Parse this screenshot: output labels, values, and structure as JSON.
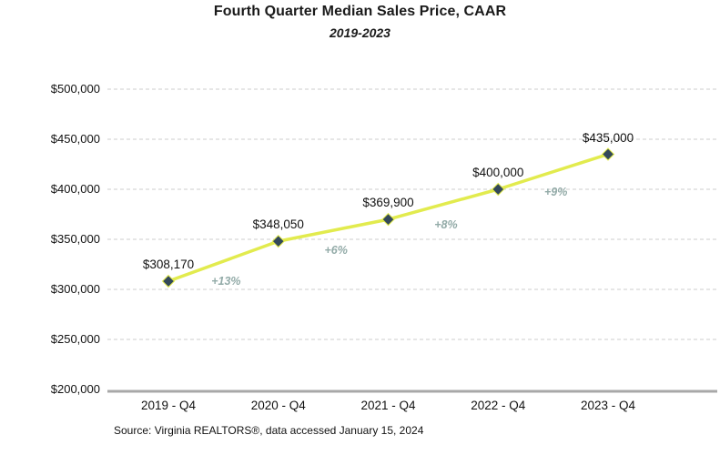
{
  "chart_data": {
    "type": "line",
    "title": "Fourth Quarter Median Sales Price, CAAR",
    "subtitle": "2019-2023",
    "categories": [
      "2019 - Q4",
      "2020 - Q4",
      "2021 - Q4",
      "2022 - Q4",
      "2023 - Q4"
    ],
    "values": [
      308170,
      348050,
      369900,
      400000,
      435000
    ],
    "value_labels": [
      "$308,170",
      "$348,050",
      "$369,900",
      "$400,000",
      "$435,000"
    ],
    "pct_change_labels": [
      "+13%",
      "+6%",
      "+8%",
      "+9%"
    ],
    "ylim": [
      200000,
      500000
    ],
    "ytick_step": 50000,
    "ytick_values": [
      200000,
      250000,
      300000,
      350000,
      400000,
      450000,
      500000
    ],
    "ytick_labels": [
      "$200,000",
      "$250,000",
      "$300,000",
      "$350,000",
      "$400,000",
      "$450,000",
      "$500,000"
    ],
    "xlabel": "",
    "ylabel": "",
    "grid": "horizontal-dashed",
    "legend": "none",
    "colors": {
      "line": "#e2eb4e",
      "marker": "#33485a",
      "pct_label": "#93aba8",
      "gridline": "#cccccc",
      "baseline": "#a8a8a8",
      "text": "#1a1a1a"
    },
    "source": "Source: Virginia REALTORS®, data accessed January 15, 2024"
  }
}
